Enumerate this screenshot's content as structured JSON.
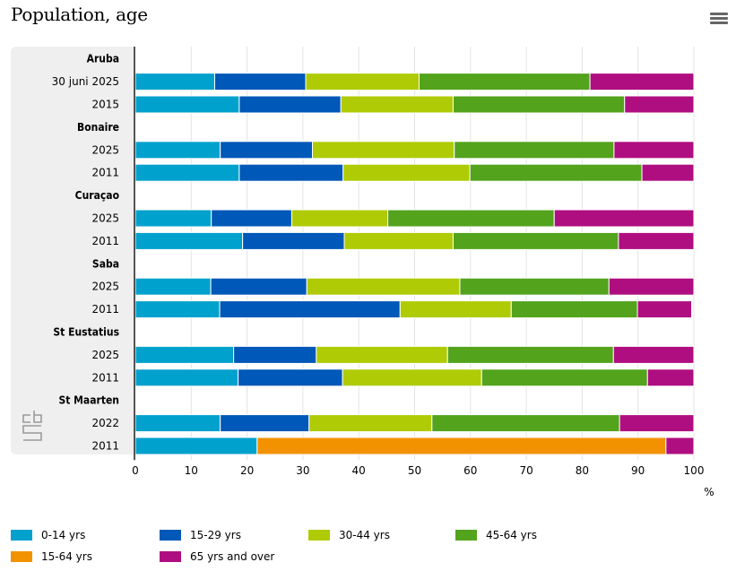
{
  "header": {
    "title": "Population, age",
    "menu_icon": "hamburger-menu-icon"
  },
  "logo": {
    "name": "cbs-logo"
  },
  "chart_data": {
    "type": "bar",
    "orientation": "horizontal",
    "stacked": true,
    "title": "Population, age",
    "xlabel": "%",
    "ylabel": "",
    "xlim": [
      0,
      100
    ],
    "xticks": [
      "0",
      "10",
      "20",
      "30",
      "40",
      "50",
      "60",
      "70",
      "80",
      "90",
      "100"
    ],
    "grid": true,
    "legend_position": "bottom",
    "series": [
      {
        "key": "a0_14",
        "name": "0-14 yrs",
        "color": "#00a1cd"
      },
      {
        "key": "a15_29",
        "name": "15-29 yrs",
        "color": "#0058b8"
      },
      {
        "key": "a30_44",
        "name": "30-44 yrs",
        "color": "#afcb05"
      },
      {
        "key": "a45_64",
        "name": "45-64 yrs",
        "color": "#53a31d"
      },
      {
        "key": "a15_64",
        "name": "15-64 yrs",
        "color": "#f39200"
      },
      {
        "key": "a65",
        "name": "65 yrs and over",
        "color": "#af0e80"
      }
    ],
    "rows": [
      {
        "type": "category",
        "label": "Aruba"
      },
      {
        "type": "bar",
        "label": "30 juni 2025",
        "values": {
          "a0_14": 14.2,
          "a15_29": 16.3,
          "a30_44": 20.3,
          "a45_64": 30.6,
          "a15_64": 0,
          "a65": 18.6
        }
      },
      {
        "type": "bar",
        "label": "2015",
        "values": {
          "a0_14": 18.6,
          "a15_29": 18.2,
          "a30_44": 20.1,
          "a45_64": 30.7,
          "a15_64": 0,
          "a65": 12.4
        }
      },
      {
        "type": "category",
        "label": "Bonaire"
      },
      {
        "type": "bar",
        "label": "2025",
        "values": {
          "a0_14": 15.2,
          "a15_29": 16.5,
          "a30_44": 25.4,
          "a45_64": 28.6,
          "a15_64": 0,
          "a65": 14.3
        }
      },
      {
        "type": "bar",
        "label": "2011",
        "values": {
          "a0_14": 18.6,
          "a15_29": 18.6,
          "a30_44": 22.7,
          "a45_64": 30.8,
          "a15_64": 0,
          "a65": 9.3
        }
      },
      {
        "type": "category",
        "label": "Curaçao"
      },
      {
        "type": "bar",
        "label": "2025",
        "values": {
          "a0_14": 13.6,
          "a15_29": 14.4,
          "a30_44": 17.2,
          "a45_64": 29.8,
          "a15_64": 0,
          "a65": 25.0
        }
      },
      {
        "type": "bar",
        "label": "2011",
        "values": {
          "a0_14": 19.2,
          "a15_29": 18.2,
          "a30_44": 19.5,
          "a45_64": 29.6,
          "a15_64": 0,
          "a65": 13.5
        }
      },
      {
        "type": "category",
        "label": "Saba"
      },
      {
        "type": "bar",
        "label": "2025",
        "values": {
          "a0_14": 13.5,
          "a15_29": 17.2,
          "a30_44": 27.4,
          "a45_64": 26.7,
          "a15_64": 0,
          "a65": 15.2
        }
      },
      {
        "type": "bar",
        "label": "2011",
        "values": {
          "a0_14": 15.1,
          "a15_29": 32.3,
          "a30_44": 19.9,
          "a45_64": 22.6,
          "a15_64": 0,
          "a65": 9.7
        }
      },
      {
        "type": "category",
        "label": "St Eustatius"
      },
      {
        "type": "bar",
        "label": "2025",
        "values": {
          "a0_14": 17.6,
          "a15_29": 14.8,
          "a30_44": 23.5,
          "a45_64": 29.7,
          "a15_64": 0,
          "a65": 14.4
        }
      },
      {
        "type": "bar",
        "label": "2011",
        "values": {
          "a0_14": 18.4,
          "a15_29": 18.7,
          "a30_44": 24.9,
          "a45_64": 29.7,
          "a15_64": 0,
          "a65": 8.3
        }
      },
      {
        "type": "category",
        "label": "St Maarten"
      },
      {
        "type": "bar",
        "label": "2022",
        "values": {
          "a0_14": 15.2,
          "a15_29": 15.9,
          "a30_44": 22.0,
          "a45_64": 33.6,
          "a15_64": 0,
          "a65": 13.3
        }
      },
      {
        "type": "bar",
        "label": "2011",
        "values": {
          "a0_14": 21.8,
          "a15_29": 0,
          "a30_44": 0,
          "a45_64": 0,
          "a15_64": 73.2,
          "a65": 5.0
        }
      }
    ]
  },
  "legend": {
    "items": [
      {
        "label": "0-14 yrs",
        "color": "#00a1cd"
      },
      {
        "label": "15-29 yrs",
        "color": "#0058b8"
      },
      {
        "label": "30-44 yrs",
        "color": "#afcb05"
      },
      {
        "label": "45-64 yrs",
        "color": "#53a31d"
      },
      {
        "label": "15-64 yrs",
        "color": "#f39200"
      },
      {
        "label": "65 yrs and over",
        "color": "#af0e80"
      }
    ]
  }
}
